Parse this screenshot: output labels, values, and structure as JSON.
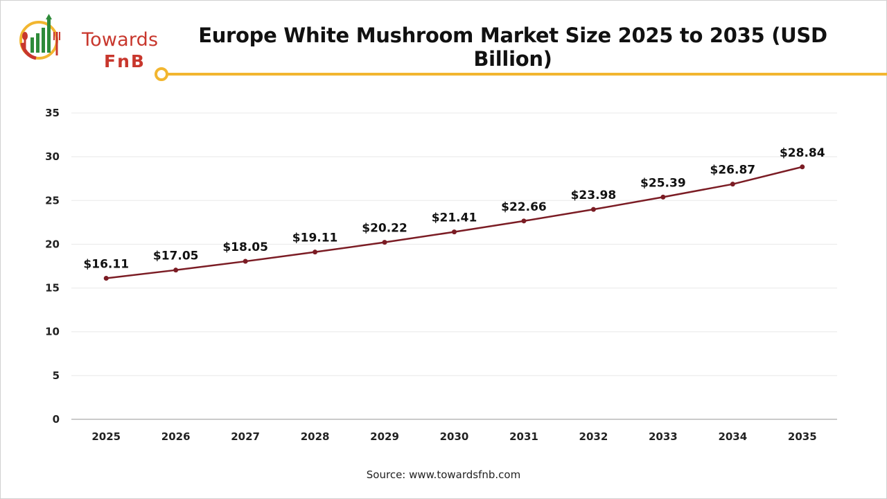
{
  "header": {
    "title": "Europe White Mushroom Market Size 2025 to 2035 (USD Billion)",
    "logo_line1": "Towards",
    "logo_line2": "FnB"
  },
  "footer": {
    "source": "Source: www.towardsfnb.com"
  },
  "colors": {
    "line": "#7b1c24",
    "accent": "#f2b630",
    "logo_red": "#c8372d",
    "logo_green": "#2e8b3a",
    "grid": "#e8e8e8"
  },
  "chart_data": {
    "type": "line",
    "x": [
      "2025",
      "2026",
      "2027",
      "2028",
      "2029",
      "2030",
      "2031",
      "2032",
      "2033",
      "2034",
      "2035"
    ],
    "series": [
      {
        "values": [
          16.11,
          17.05,
          18.05,
          19.11,
          20.22,
          21.41,
          22.66,
          23.98,
          25.39,
          26.87,
          28.84
        ],
        "labels": [
          "$16.11",
          "$17.05",
          "$18.05",
          "$19.11",
          "$20.22",
          "$21.41",
          "$22.66",
          "$23.98",
          "$25.39",
          "$26.87",
          "$28.84"
        ]
      }
    ],
    "ylim": [
      0,
      35
    ],
    "yticks": [
      0,
      5,
      10,
      15,
      20,
      25,
      30,
      35
    ],
    "grid": true,
    "legend": "none"
  }
}
